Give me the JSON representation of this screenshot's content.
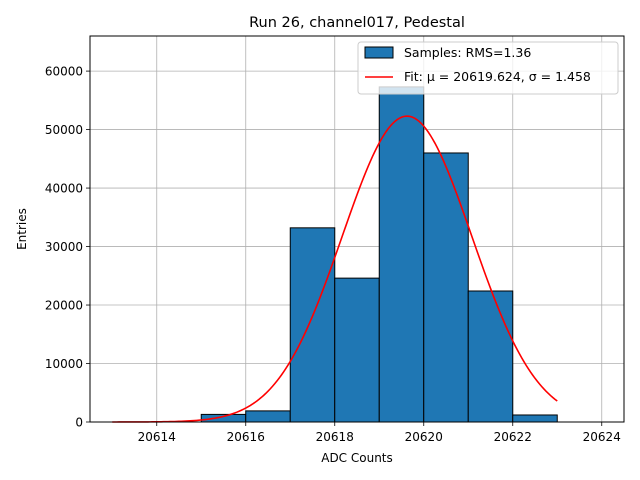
{
  "chart_data": {
    "type": "bar",
    "title": "Run 26, channel017, Pedestal",
    "xlabel": "ADC Counts",
    "ylabel": "Entries",
    "xlim": [
      20612.5,
      20624.5
    ],
    "ylim": [
      0,
      66000
    ],
    "grid": true,
    "legend_position": "top-right",
    "x_ticks": [
      20614,
      20616,
      20618,
      20620,
      20622,
      20624
    ],
    "y_ticks": [
      0,
      10000,
      20000,
      30000,
      40000,
      50000,
      60000
    ],
    "bins": [
      {
        "x0": 20615,
        "x1": 20616,
        "value": 1300
      },
      {
        "x0": 20616,
        "x1": 20617,
        "value": 1900
      },
      {
        "x0": 20617,
        "x1": 20618,
        "value": 33200
      },
      {
        "x0": 20618,
        "x1": 20619,
        "value": 24600
      },
      {
        "x0": 20619,
        "x1": 20620,
        "value": 57300
      },
      {
        "x0": 20620,
        "x1": 20621,
        "value": 46000
      },
      {
        "x0": 20621,
        "x1": 20622,
        "value": 22400
      },
      {
        "x0": 20622,
        "x1": 20623,
        "value": 1200
      }
    ],
    "fit": {
      "mu": 20619.624,
      "sigma": 1.458,
      "amplitude": 52300,
      "x_range": [
        20613,
        20623
      ]
    },
    "series": [
      {
        "name": "Samples: RMS=1.36",
        "color": "#1f77b4"
      },
      {
        "name": "Fit: μ = 20619.624, σ = 1.458",
        "color": "#ff0000"
      }
    ]
  }
}
